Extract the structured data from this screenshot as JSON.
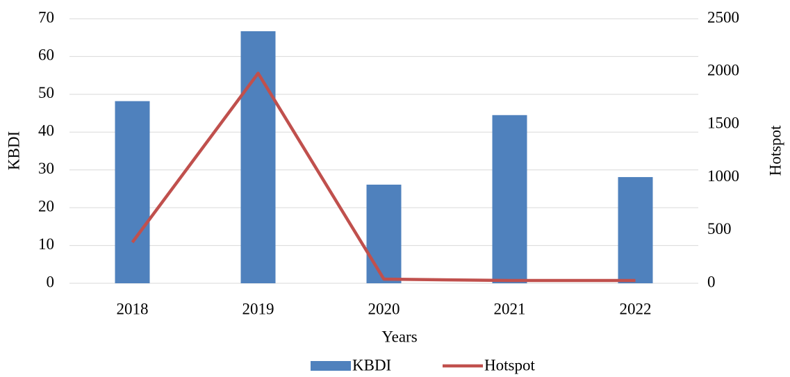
{
  "chart_data": {
    "type": "bar_line",
    "categories": [
      "2018",
      "2019",
      "2020",
      "2021",
      "2022"
    ],
    "series": [
      {
        "name": "KBDI",
        "type": "bar",
        "color": "#4f81bd",
        "values": [
          48.2,
          66.7,
          26.1,
          44.5,
          28.1
        ]
      },
      {
        "name": "Hotspot",
        "type": "line",
        "color": "#c0504d",
        "axis": "y2",
        "values": [
          387,
          1985,
          39,
          26,
          26
        ]
      }
    ],
    "xlabel": "Years",
    "ylabel": "KBDI",
    "y2label": "Hotspot",
    "ylim": [
      0,
      70
    ],
    "yticks": [
      0,
      10,
      20,
      30,
      40,
      50,
      60,
      70
    ],
    "y2lim": [
      0,
      2500
    ],
    "y2ticks": [
      0,
      500,
      1000,
      1500,
      2000,
      2500
    ],
    "grid": true,
    "legend": "bottom"
  }
}
